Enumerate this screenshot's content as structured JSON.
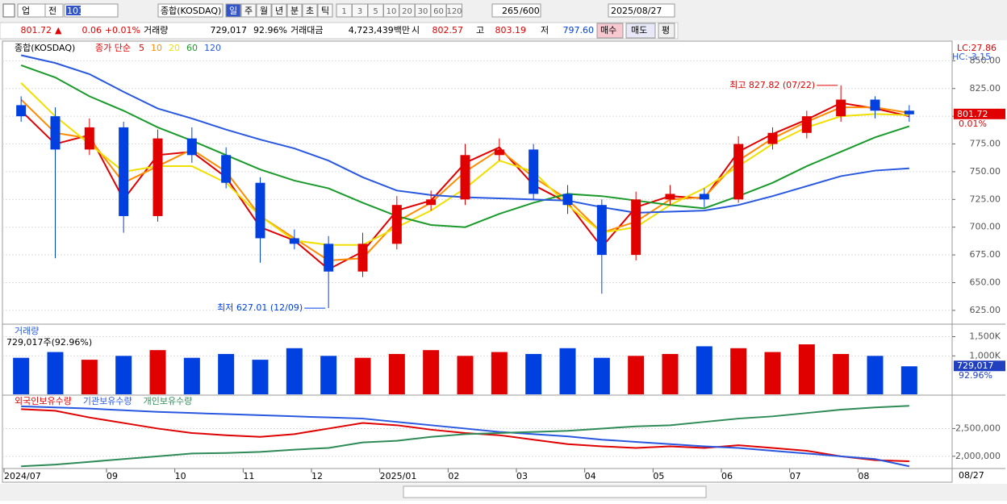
{
  "toolbar": {
    "market": "업",
    "scope": "전",
    "code": "101",
    "name": "종합(KOSDAQ)",
    "periods": [
      "일",
      "주",
      "월",
      "년",
      "분",
      "초",
      "틱"
    ],
    "intervals": [
      "1",
      "3",
      "5",
      "10",
      "20",
      "30",
      "60",
      "120"
    ],
    "count": "265",
    "max": "/600",
    "date": "2025/08/27"
  },
  "quote": {
    "price": "801.72",
    "arrow": "▲",
    "change": "0.06",
    "change_pct": "+0.01%",
    "volume_label": "거래량",
    "volume": "729,017",
    "volume_pct": "92.96%",
    "amount_label": "거래대금",
    "amount": "4,723,439백만",
    "open_label": "시",
    "open": "802.57",
    "high_label": "고",
    "high": "803.19",
    "low_label": "저",
    "low": "797.60",
    "buy": "매수",
    "sell": "매도",
    "avg": "평"
  },
  "chart_data": [
    {
      "type": "candlestick",
      "legend_title": "종합(KOSDAQ)",
      "legend_prefix": "종가 단순",
      "lc": "LC:27.86",
      "hc": "HC:-3.15",
      "last_price": "801.72",
      "last_change": "0.01%",
      "categories": [
        "2024/07",
        null,
        null,
        "09",
        null,
        "10",
        null,
        "11",
        null,
        "12",
        null,
        "2025/01",
        null,
        "02",
        null,
        "03",
        null,
        "04",
        null,
        "05",
        null,
        "06",
        null,
        "07",
        null,
        "08",
        null
      ],
      "x_end_label": "08/27",
      "open": [
        810,
        800,
        770,
        790,
        710,
        780,
        765,
        740,
        690,
        685,
        660,
        685,
        720,
        725,
        765,
        770,
        730,
        720,
        675,
        725,
        730,
        725,
        775,
        785,
        800,
        815,
        805
      ],
      "high": [
        818,
        808,
        798,
        795,
        788,
        790,
        772,
        745,
        698,
        692,
        695,
        728,
        733,
        775,
        780,
        775,
        738,
        725,
        732,
        738,
        735,
        782,
        790,
        805,
        827.82,
        818,
        810
      ],
      "low": [
        795,
        672,
        765,
        695,
        705,
        758,
        735,
        668,
        680,
        627.01,
        655,
        680,
        715,
        720,
        760,
        725,
        712,
        640,
        670,
        720,
        718,
        722,
        770,
        780,
        795,
        798,
        795
      ],
      "close": [
        800,
        770,
        790,
        710,
        780,
        765,
        740,
        690,
        685,
        660,
        685,
        720,
        725,
        765,
        770,
        730,
        720,
        675,
        725,
        730,
        725,
        775,
        785,
        800,
        815,
        805,
        801.72
      ],
      "up_color": "#e00000",
      "down_color": "#0040e0",
      "series": [
        {
          "name": "5",
          "color": "#e00000",
          "values": [
            805,
            775,
            783,
            725,
            765,
            768,
            745,
            700,
            688,
            662,
            678,
            715,
            724,
            758,
            772,
            738,
            722,
            682,
            718,
            728,
            726,
            768,
            784,
            797,
            812,
            807,
            800
          ]
        },
        {
          "name": "10",
          "color": "#ff8c00",
          "values": [
            815,
            785,
            780,
            740,
            755,
            770,
            750,
            710,
            690,
            670,
            672,
            705,
            722,
            750,
            770,
            745,
            725,
            695,
            705,
            725,
            727,
            760,
            780,
            795,
            808,
            808,
            803
          ]
        },
        {
          "name": "20",
          "color": "#f0e000",
          "values": [
            830,
            800,
            775,
            750,
            755,
            755,
            740,
            710,
            688,
            684,
            684,
            700,
            715,
            735,
            760,
            750,
            720,
            695,
            700,
            720,
            735,
            755,
            775,
            790,
            800,
            802,
            801
          ]
        },
        {
          "name": "60",
          "color": "#1a9a2a",
          "values": [
            846,
            835,
            818,
            805,
            790,
            778,
            765,
            752,
            742,
            735,
            722,
            710,
            702,
            700,
            712,
            722,
            730,
            728,
            724,
            720,
            717,
            728,
            740,
            755,
            768,
            781,
            791
          ]
        },
        {
          "name": "120",
          "color": "#2858e0",
          "values": [
            855,
            848,
            838,
            822,
            807,
            798,
            788,
            779,
            771,
            760,
            745,
            733,
            729,
            727,
            726,
            725,
            724,
            718,
            713,
            714,
            715,
            720,
            728,
            737,
            746,
            751,
            753
          ]
        }
      ],
      "annotations": [
        {
          "text": "최고 827.82 (07/22)",
          "index": 24,
          "kind": "high"
        },
        {
          "text": "최저 627.01 (12/09)",
          "index": 9,
          "kind": "low"
        }
      ],
      "ylim": [
        614,
        867
      ],
      "yticks": [
        {
          "value": 625,
          "label": "625.00"
        },
        {
          "value": 650,
          "label": "650.00"
        },
        {
          "value": 675,
          "label": "675.00"
        },
        {
          "value": 700,
          "label": "700.00"
        },
        {
          "value": 725,
          "label": "725.00"
        },
        {
          "value": 750,
          "label": "750.00"
        },
        {
          "value": 775,
          "label": "775.00"
        },
        {
          "value": 800,
          "label": "800.00"
        },
        {
          "value": 825,
          "label": "825.00"
        },
        {
          "value": 850,
          "label": "850.00"
        }
      ]
    },
    {
      "type": "bar",
      "title": "거래량",
      "subtitle": "729,017주(92.96%)",
      "last_value": "729,017",
      "last_pct": "92.96%",
      "values": [
        950,
        1100,
        900,
        1000,
        1150,
        950,
        1050,
        900,
        1200,
        1000,
        950,
        1050,
        1150,
        1000,
        1100,
        1050,
        1200,
        950,
        1000,
        1050,
        1250,
        1200,
        1100,
        1300,
        1050,
        1000,
        729.017
      ],
      "ylim": [
        0,
        1804
      ],
      "yticks": [
        {
          "value": 1000,
          "label": "1,000K"
        },
        {
          "value": 1500,
          "label": "1,500K"
        }
      ]
    },
    {
      "type": "line",
      "series": [
        {
          "name": "외국인보유수량",
          "color": "#e00000",
          "values": [
            2850000,
            2820000,
            2700000,
            2600000,
            2500000,
            2420000,
            2380000,
            2350000,
            2400000,
            2500000,
            2600000,
            2560000,
            2480000,
            2420000,
            2380000,
            2300000,
            2220000,
            2180000,
            2150000,
            2180000,
            2150000,
            2200000,
            2150000,
            2100000,
            2000000,
            1930000,
            1910000
          ]
        },
        {
          "name": "기관보유수량",
          "color": "#2858e0",
          "values": [
            2900000,
            2880000,
            2860000,
            2830000,
            2800000,
            2780000,
            2760000,
            2740000,
            2720000,
            2700000,
            2680000,
            2620000,
            2560000,
            2500000,
            2440000,
            2400000,
            2360000,
            2300000,
            2260000,
            2220000,
            2180000,
            2150000,
            2100000,
            2050000,
            2000000,
            1950000,
            1820000
          ]
        },
        {
          "name": "개인보유수량",
          "color": "#2e8b57",
          "values": [
            1820000,
            1850000,
            1900000,
            1950000,
            2000000,
            2050000,
            2060000,
            2080000,
            2120000,
            2150000,
            2250000,
            2280000,
            2350000,
            2400000,
            2420000,
            2440000,
            2460000,
            2500000,
            2540000,
            2560000,
            2620000,
            2680000,
            2720000,
            2780000,
            2840000,
            2880000,
            2910000
          ]
        }
      ],
      "ylim": [
        1794000,
        3088000
      ],
      "yticks": [
        {
          "value": 2000000,
          "label": "2,000,000"
        },
        {
          "value": 2500000,
          "label": "2,500,000"
        }
      ]
    }
  ]
}
